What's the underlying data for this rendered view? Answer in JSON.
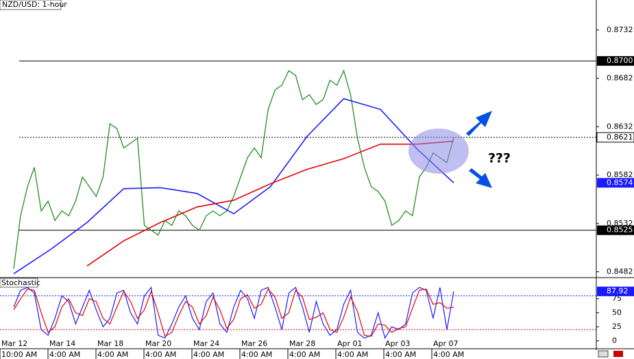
{
  "chart_data": {
    "type": "line",
    "title": "NZD/USD: 1-hour",
    "ylim": [
      0.8476,
      0.8763
    ],
    "yticks": [
      0.8482,
      0.8532,
      0.8582,
      0.8632,
      0.8682,
      0.8732
    ],
    "levels": [
      {
        "value": 0.87,
        "label": "0.8700"
      },
      0.8525
    ],
    "annotation": "???",
    "x_labels": [
      {
        "date": "Mar 12",
        "time": "10:00 AM"
      },
      {
        "date": "Mar 14",
        "time": "4:00 AM"
      },
      {
        "date": "Mar 18",
        "time": "4:00 AM"
      },
      {
        "date": "Mar 20",
        "time": "4:00 AM"
      },
      {
        "date": "Mar 24",
        "time": "4:00 AM"
      },
      {
        "date": "Mar 26",
        "time": "4:00 AM"
      },
      {
        "date": "Mar 28",
        "time": "4:00 AM"
      },
      {
        "date": "Apr 01",
        "time": "4:00 AM"
      },
      {
        "date": "Apr 03",
        "time": "4:00 AM"
      },
      {
        "date": "Apr 07",
        "time": "4:00 AM"
      }
    ],
    "series": [
      {
        "color": "#1f8f1f",
        "values": [
          0.8485,
          0.854,
          0.857,
          0.859,
          0.8545,
          0.8555,
          0.8535,
          0.8545,
          0.854,
          0.8555,
          0.858,
          0.857,
          0.856,
          0.858,
          0.8635,
          0.863,
          0.861,
          0.8615,
          0.862,
          0.853,
          0.8525,
          0.852,
          0.8535,
          0.853,
          0.8545,
          0.854,
          0.853,
          0.8525,
          0.854,
          0.8545,
          0.854,
          0.8545,
          0.856,
          0.858,
          0.86,
          0.861,
          0.86,
          0.865,
          0.867,
          0.8675,
          0.869,
          0.8685,
          0.866,
          0.8665,
          0.8655,
          0.866,
          0.868,
          0.8675,
          0.869,
          0.8665,
          0.862,
          0.859,
          0.857,
          0.8565,
          0.8555,
          0.853,
          0.8535,
          0.8545,
          0.854,
          0.858,
          0.859,
          0.8605,
          0.86,
          0.8595,
          0.8621
        ]
      },
      {
        "color": "#1a1aff",
        "values": [
          0.848,
          0.8505,
          0.8533,
          0.8568,
          0.8569,
          0.8563,
          0.8542,
          0.857,
          0.8622,
          0.8661,
          0.865,
          0.8609,
          0.8574
        ]
      },
      {
        "color": "#e00000",
        "values": [
          null,
          null,
          0.8488,
          0.8514,
          0.8533,
          0.8549,
          0.8556,
          0.8573,
          0.8588,
          0.8599,
          0.8614,
          0.8614,
          0.8617
        ]
      }
    ],
    "stochastic": {
      "title": "Stochastic",
      "ylim": [
        -14,
        110
      ],
      "yticks": [
        0,
        25,
        50,
        75
      ],
      "levels": [
        80,
        20
      ],
      "series": [
        {
          "color": "#1a1aff",
          "values": [
            60,
            90,
            95,
            85,
            20,
            10,
            40,
            80,
            70,
            30,
            60,
            90,
            55,
            25,
            40,
            85,
            90,
            50,
            30,
            80,
            95,
            10,
            5,
            30,
            60,
            80,
            40,
            20,
            70,
            85,
            30,
            15,
            60,
            90,
            75,
            40,
            90,
            95,
            60,
            20,
            85,
            95,
            60,
            15,
            70,
            30,
            10,
            20,
            65,
            90,
            15,
            5,
            10,
            50,
            5,
            25,
            20,
            30,
            85,
            95,
            90,
            40,
            95,
            20,
            87.92
          ]
        },
        {
          "color": "#e00000",
          "values": [
            55,
            75,
            92,
            90,
            50,
            15,
            25,
            60,
            75,
            50,
            45,
            75,
            70,
            40,
            30,
            60,
            88,
            70,
            40,
            55,
            88,
            50,
            8,
            15,
            45,
            70,
            60,
            30,
            45,
            78,
            55,
            22,
            38,
            75,
            82,
            58,
            65,
            92,
            78,
            40,
            50,
            90,
            78,
            38,
            42,
            50,
            20,
            15,
            42,
            78,
            52,
            10,
            8,
            30,
            28,
            15,
            22,
            25,
            58,
            90,
            92,
            65,
            68,
            58,
            60
          ]
        }
      ]
    }
  }
}
